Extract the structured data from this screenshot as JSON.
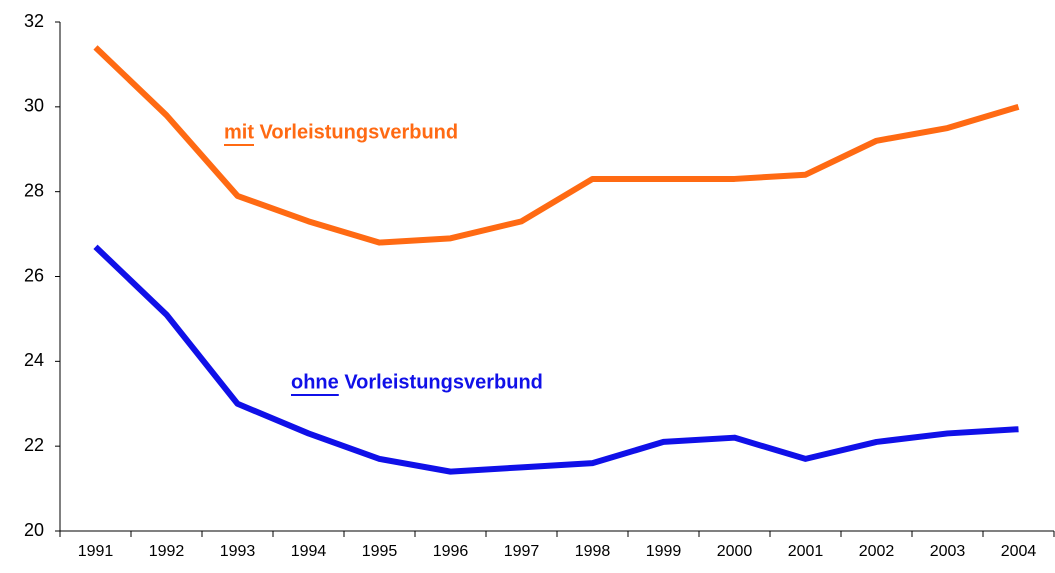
{
  "chart_data": {
    "type": "line",
    "categories": [
      "1991",
      "1992",
      "1993",
      "1994",
      "1995",
      "1996",
      "1997",
      "1998",
      "1999",
      "2000",
      "2001",
      "2002",
      "2003",
      "2004"
    ],
    "series": [
      {
        "name": "mit Vorleistungsverbund",
        "color": "#ff6a13",
        "values": [
          31.4,
          29.8,
          27.9,
          27.3,
          26.8,
          26.9,
          27.3,
          28.3,
          28.3,
          28.3,
          28.4,
          29.2,
          29.5,
          30.0
        ]
      },
      {
        "name": "ohne Vorleistungsverbund",
        "color": "#1010e8",
        "values": [
          26.7,
          25.1,
          23.0,
          22.3,
          21.7,
          21.4,
          21.5,
          21.6,
          22.1,
          22.2,
          21.7,
          22.1,
          22.3,
          22.4
        ]
      }
    ],
    "ylim": [
      20,
      32
    ],
    "yticks": [
      20,
      22,
      24,
      26,
      28,
      30,
      32
    ],
    "grid": false
  }
}
